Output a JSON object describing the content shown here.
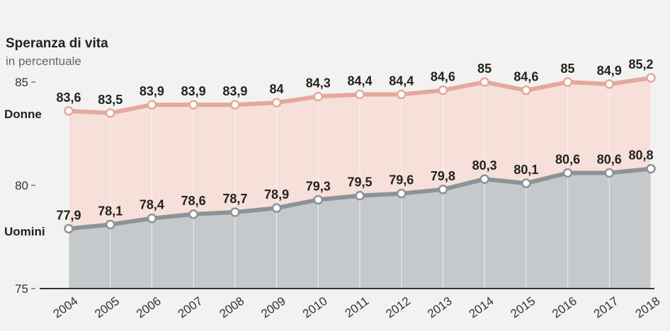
{
  "chart_data": {
    "type": "area",
    "title": "Speranza di vita",
    "subtitle": "in percentuale",
    "categories": [
      "2004",
      "2005",
      "2006",
      "2007",
      "2008",
      "2009",
      "2010",
      "2011",
      "2012",
      "2013",
      "2014",
      "2015",
      "2016",
      "2017",
      "2018"
    ],
    "series": [
      {
        "name": "Donne",
        "values": [
          83.6,
          83.5,
          83.9,
          83.9,
          83.9,
          84,
          84.3,
          84.4,
          84.4,
          84.6,
          85,
          84.6,
          85,
          84.9,
          85.2
        ],
        "labels": [
          "83,6",
          "83,5",
          "83,9",
          "83,9",
          "83,9",
          "84",
          "84,3",
          "84,4",
          "84,4",
          "84,6",
          "85",
          "84,6",
          "85",
          "84,9",
          "85,2"
        ],
        "line_color": "#e3a99c",
        "fill_color": "#f6e0d9"
      },
      {
        "name": "Uomini",
        "values": [
          77.9,
          78.1,
          78.4,
          78.6,
          78.7,
          78.9,
          79.3,
          79.5,
          79.6,
          79.8,
          80.3,
          80.1,
          80.6,
          80.6,
          80.8
        ],
        "labels": [
          "77,9",
          "78,1",
          "78,4",
          "78,6",
          "78,7",
          "78,9",
          "79,3",
          "79,5",
          "79,6",
          "79,8",
          "80,3",
          "80,1",
          "80,6",
          "80,6",
          "80,8"
        ],
        "line_color": "#8d9296",
        "fill_color": "#c5c9cb"
      }
    ],
    "yticks": [
      "75",
      "80",
      "85"
    ],
    "ytick_values": [
      75,
      80,
      85
    ],
    "ylim": [
      75,
      85.6
    ],
    "colors": {
      "gridline": "#d8d4d0",
      "axis": "#333333",
      "marker_fill": "#ffffff"
    }
  }
}
